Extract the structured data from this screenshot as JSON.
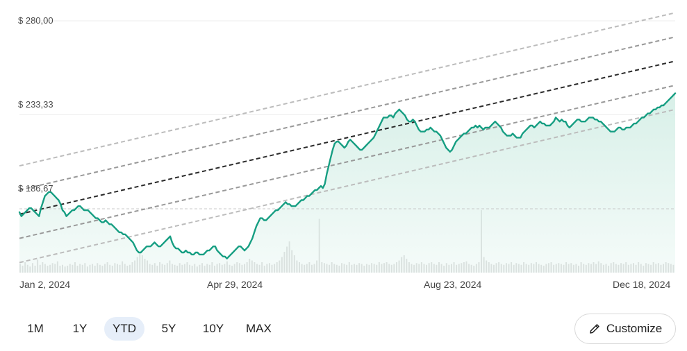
{
  "chart_data": {
    "type": "line",
    "y_ticks": [
      "$ 280,00",
      "$ 233,33",
      "$ 186,67"
    ],
    "ylim": [
      155,
      280
    ],
    "reference_price": 186.67,
    "x_ticks": [
      "Jan 2, 2024",
      "Apr 29, 2024",
      "Aug 23, 2024",
      "Dec 18, 2024"
    ],
    "x_range": [
      "2024-01-02",
      "2024-12-31"
    ],
    "series": [
      {
        "values": [
          185,
          183,
          184,
          185,
          186,
          187,
          187,
          186,
          185,
          184,
          183,
          187,
          190,
          193,
          194,
          195,
          195,
          194,
          193,
          192,
          191,
          189,
          186,
          185,
          183,
          184,
          185,
          186,
          186,
          187,
          188,
          188,
          187,
          186,
          186,
          186,
          185,
          184,
          183,
          182,
          182,
          181,
          180,
          180,
          181,
          180,
          179,
          179,
          178,
          177,
          176,
          175,
          175,
          174,
          174,
          173,
          172,
          171,
          170,
          168,
          166,
          165,
          165,
          166,
          167,
          168,
          168,
          168,
          169,
          170,
          169,
          168,
          168,
          169,
          170,
          171,
          172,
          173,
          170,
          168,
          167,
          167,
          166,
          165,
          165,
          166,
          165,
          165,
          164,
          164,
          165,
          165,
          164,
          164,
          164,
          165,
          166,
          166,
          167,
          168,
          168,
          166,
          165,
          164,
          163,
          163,
          162,
          163,
          164,
          165,
          166,
          167,
          168,
          168,
          167,
          166,
          167,
          168,
          170,
          172,
          175,
          178,
          180,
          182,
          182,
          181,
          181,
          182,
          183,
          184,
          185,
          186,
          186,
          187,
          188,
          189,
          190,
          189,
          189,
          188,
          188,
          188,
          189,
          190,
          191,
          191,
          192,
          193,
          193,
          194,
          195,
          196,
          196,
          197,
          198,
          197,
          199,
          204,
          208,
          212,
          216,
          219,
          220,
          220,
          219,
          218,
          217,
          218,
          220,
          221,
          220,
          219,
          218,
          217,
          216,
          216,
          217,
          218,
          219,
          220,
          221,
          222,
          224,
          226,
          228,
          230,
          232,
          232,
          232,
          233,
          233,
          232,
          234,
          235,
          236,
          235,
          234,
          233,
          231,
          230,
          230,
          231,
          230,
          228,
          226,
          225,
          225,
          225,
          226,
          226,
          227,
          226,
          225,
          225,
          224,
          223,
          221,
          219,
          217,
          216,
          215,
          216,
          218,
          220,
          221,
          222,
          223,
          224,
          224,
          225,
          226,
          227,
          227,
          228,
          227,
          228,
          227,
          226,
          227,
          227,
          227,
          228,
          229,
          230,
          229,
          228,
          227,
          225,
          224,
          223,
          223,
          223,
          224,
          223,
          222,
          222,
          222,
          224,
          225,
          226,
          227,
          228,
          228,
          227,
          228,
          229,
          230,
          229,
          229,
          228,
          228,
          228,
          229,
          230,
          232,
          231,
          230,
          231,
          230,
          230,
          228,
          227,
          228,
          229,
          230,
          231,
          231,
          230,
          230,
          230,
          231,
          232,
          232,
          232,
          231,
          231,
          230,
          230,
          229,
          228,
          227,
          226,
          225,
          225,
          225,
          226,
          227,
          227,
          226,
          226,
          227,
          227,
          227,
          228,
          229,
          229,
          230,
          231,
          232,
          232,
          233,
          234,
          234,
          235,
          236,
          236,
          237,
          237,
          238,
          238,
          239,
          240,
          241,
          242,
          243,
          244
        ]
      }
    ],
    "trend_lines": {
      "start": [
        178,
        190
      ],
      "end": [
        254,
        266
      ],
      "offsets": [
        -24,
        -12,
        0,
        12,
        24
      ]
    },
    "volume": [
      10,
      8,
      12,
      9,
      7,
      11,
      8,
      15,
      9,
      12,
      10,
      8,
      9,
      11,
      10,
      13,
      8,
      9,
      7,
      8,
      10,
      9,
      12,
      8,
      10,
      9,
      11,
      7,
      9,
      10,
      8,
      11,
      9,
      8,
      10,
      12,
      9,
      8,
      11,
      10,
      9,
      13,
      10,
      8,
      9,
      12,
      14,
      18,
      22,
      20,
      16,
      14,
      10,
      9,
      11,
      8,
      12,
      10,
      9,
      11,
      14,
      10,
      9,
      8,
      11,
      9,
      10,
      12,
      9,
      8,
      10,
      7,
      9,
      11,
      8,
      10,
      9,
      12,
      8,
      10,
      11,
      9,
      10,
      13,
      9,
      8,
      10,
      12,
      11,
      9,
      10,
      12,
      16,
      14,
      12,
      10,
      9,
      12,
      8,
      10,
      11,
      9,
      10,
      12,
      14,
      18,
      24,
      30,
      36,
      26,
      20,
      14,
      12,
      10,
      9,
      10,
      12,
      9,
      10,
      14,
      62,
      12,
      11,
      10,
      9,
      12,
      10,
      9,
      8,
      11,
      10,
      9,
      12,
      9,
      10,
      9,
      11,
      10,
      8,
      10,
      9,
      11,
      10,
      9,
      12,
      10,
      11,
      12,
      10,
      9,
      10,
      12,
      14,
      18,
      20,
      16,
      12,
      10,
      9,
      11,
      10,
      12,
      10,
      9,
      11,
      12,
      10,
      9,
      12,
      10,
      8,
      11,
      9,
      10,
      12,
      9,
      10,
      11,
      12,
      13,
      10,
      9,
      8,
      10,
      12,
      72,
      18,
      14,
      12,
      10,
      9,
      11,
      12,
      10,
      9,
      11,
      10,
      12,
      9,
      11,
      10,
      9,
      12,
      10,
      9,
      11,
      10,
      12,
      10,
      9,
      8,
      10,
      11,
      12,
      9,
      10,
      11,
      10,
      9,
      12,
      10,
      11,
      9,
      10,
      8,
      12,
      10,
      9,
      11,
      10,
      12,
      10,
      13,
      11,
      9,
      10,
      8,
      11,
      12,
      10,
      9,
      11,
      10,
      12,
      9,
      10,
      11,
      9,
      12,
      10,
      8,
      11,
      10,
      9,
      12,
      10,
      11,
      9,
      10,
      12,
      11,
      10,
      9
    ]
  },
  "controls": {
    "ranges": [
      "1M",
      "1Y",
      "YTD",
      "5Y",
      "10Y",
      "MAX"
    ],
    "active_range": "YTD",
    "customize_label": "Customize"
  },
  "colors": {
    "line": "#169e82",
    "fill_top": "#d6efe7",
    "trend_center": "#2b2b2b",
    "trend_inner": "#999999",
    "trend_outer": "#bcbcbc",
    "volume": "#dcdcdc",
    "grid": "#ececec",
    "active_range_bg": "#e6eef9"
  }
}
